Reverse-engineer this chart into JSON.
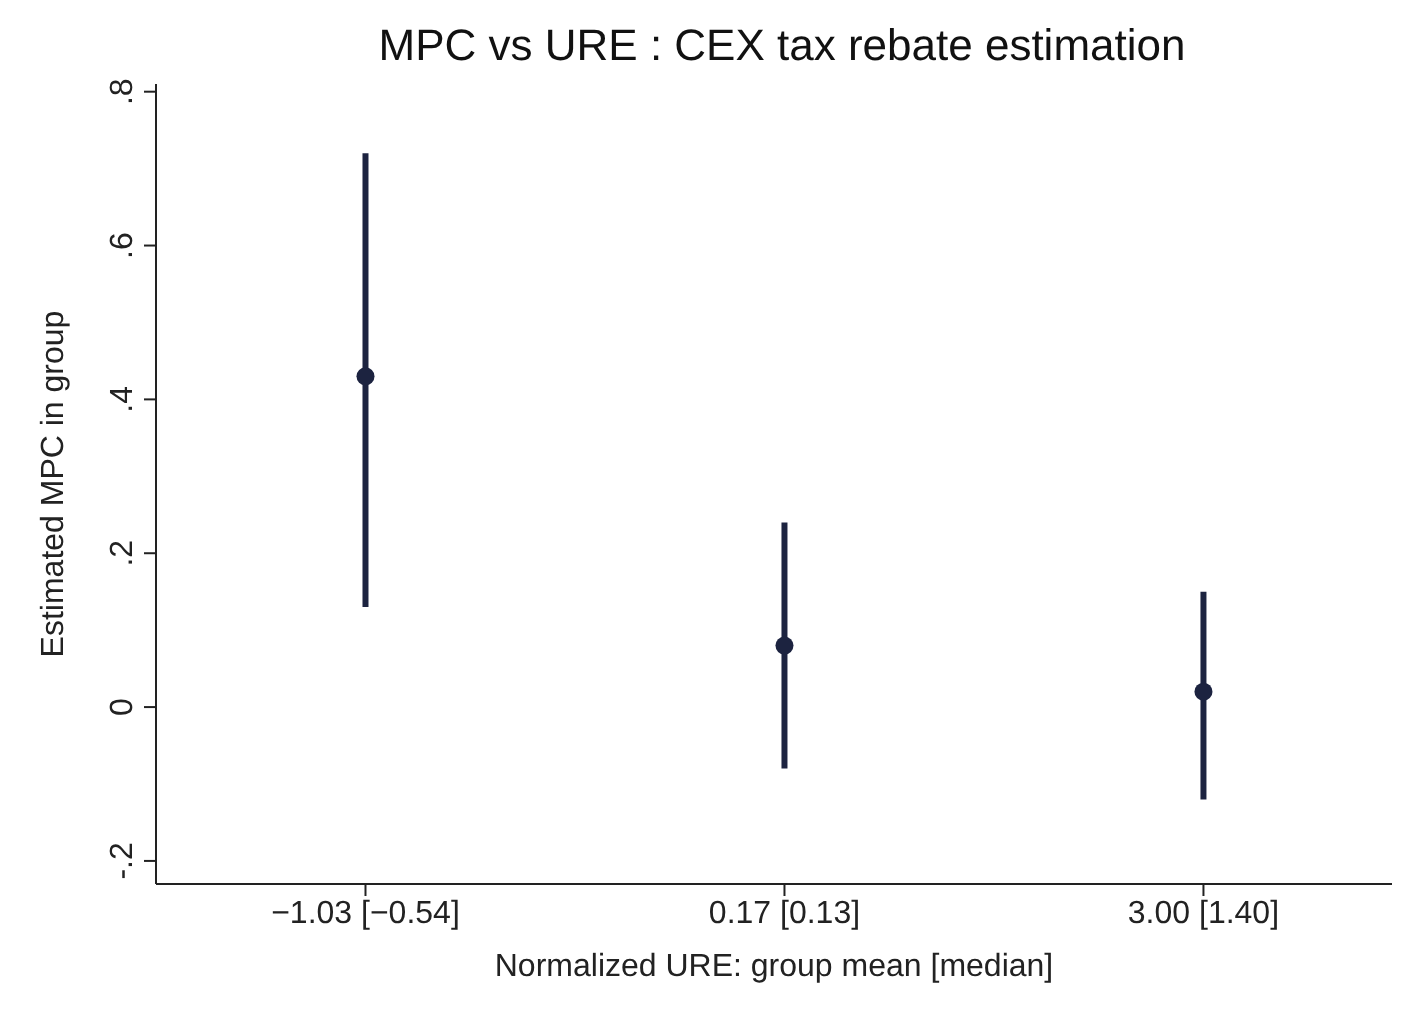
{
  "chart_data": {
    "type": "scatter",
    "title": "MPC vs URE : CEX tax rebate estimation",
    "xlabel": "Normalized URE: group mean [median]",
    "ylabel": "Estimated MPC in group",
    "categories": [
      "−1.03 [−0.54]",
      "0.17 [0.13]",
      "3.00 [1.40]"
    ],
    "series": [
      {
        "color": "#1c2340",
        "values": [
          0.43,
          0.08,
          0.02
        ],
        "errors": [
          [
            0.13,
            0.72
          ],
          [
            -0.08,
            0.24
          ],
          [
            -0.12,
            0.15
          ]
        ]
      }
    ],
    "ylim": [
      -0.23,
      0.81
    ],
    "yticks": [
      {
        "value": -0.2,
        "label": "-.2"
      },
      {
        "value": 0,
        "label": "0"
      },
      {
        "value": 0.2,
        "label": ".2"
      },
      {
        "value": 0.4,
        "label": ".4"
      },
      {
        "value": 0.6,
        "label": ".6"
      },
      {
        "value": 0.8,
        "label": ".8"
      }
    ],
    "grid": false,
    "legend": false,
    "marker": "circle"
  }
}
